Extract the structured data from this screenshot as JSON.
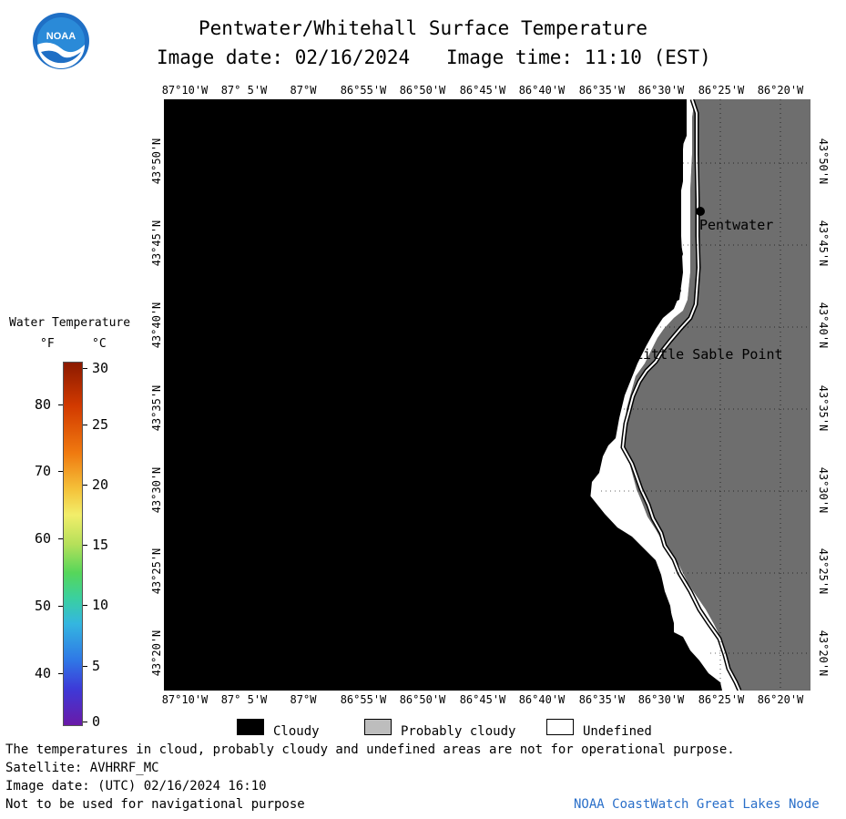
{
  "header": {
    "title": "Pentwater/Whitehall Surface Temperature",
    "date_label": "Image date: 02/16/2024",
    "time_label": "Image time: 11:10 (EST)",
    "logo_text": "NOAA"
  },
  "map": {
    "lon_labels": [
      "87°10'W",
      "87° 5'W",
      "87°W",
      "86°55'W",
      "86°50'W",
      "86°45'W",
      "86°40'W",
      "86°35'W",
      "86°30'W",
      "86°25'W",
      "86°20'W"
    ],
    "lat_labels": [
      "43°50'N",
      "43°45'N",
      "43°40'N",
      "43°35'N",
      "43°30'N",
      "43°25'N",
      "43°20'N"
    ],
    "places": [
      "Pentwater",
      "Little Sable Point"
    ],
    "colors": {
      "cloud": "#000000",
      "land": "#6e6e6e",
      "undefined": "#ffffff"
    }
  },
  "colorbar": {
    "title": "Water Temperature",
    "unit_f": "°F",
    "unit_c": "°C",
    "f_ticks": [
      "80",
      "70",
      "60",
      "50",
      "40"
    ],
    "c_ticks": [
      "30",
      "25",
      "20",
      "15",
      "10",
      "5",
      "0"
    ]
  },
  "legend": {
    "items": [
      {
        "label": "Cloudy",
        "color": "#000000"
      },
      {
        "label": "Probably cloudy",
        "color": "#bdbdbd"
      },
      {
        "label": "Undefined",
        "color": "#ffffff"
      }
    ]
  },
  "footer": {
    "line1": "The temperatures in cloud, probably cloudy and undefined areas are not for operational purpose.",
    "line2": "Satellite: AVHRRF_MC",
    "line3": "Image date: (UTC) 02/16/2024  16:10",
    "line4": "Not to be used for navigational purpose",
    "credit": "NOAA CoastWatch Great Lakes Node"
  }
}
